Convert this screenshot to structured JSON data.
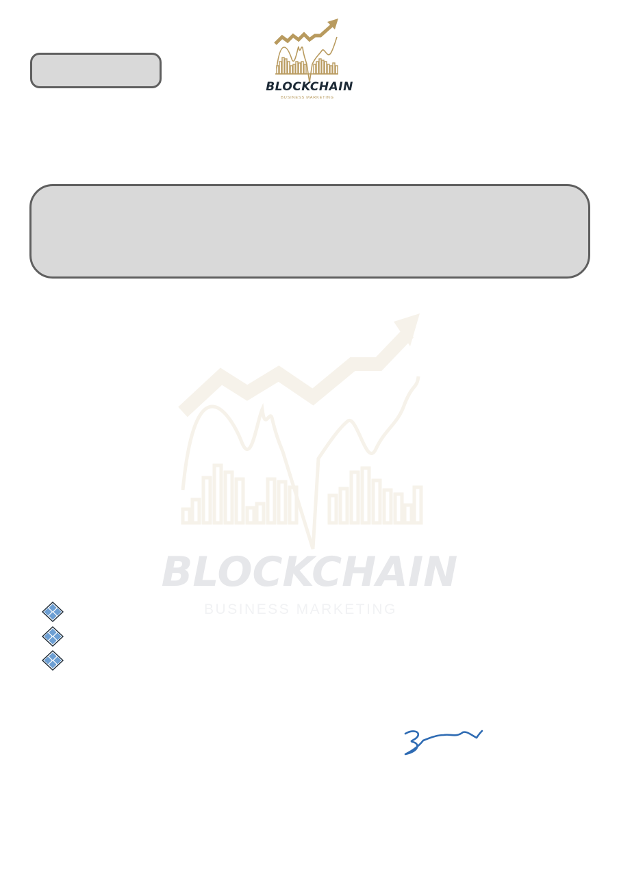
{
  "header": {
    "logo": {
      "title": "BLOCKCHAIN",
      "subtitle": "BUSINESS MARKETING",
      "color_gold": "#b89a5e",
      "color_dark": "#1d2a36"
    },
    "reference_box": {
      "text": ""
    }
  },
  "main_box": {
    "text": ""
  },
  "watermark": {
    "title": "BLOCKCHAIN",
    "subtitle": "BUSINESS MARKETING",
    "color_chart": "#f6f2ea",
    "color_text": "#e6e7ea"
  },
  "bullets": [
    {
      "icon": "diamond-bullet-icon",
      "text": ""
    },
    {
      "icon": "diamond-bullet-icon",
      "text": ""
    },
    {
      "icon": "diamond-bullet-icon",
      "text": ""
    }
  ],
  "signature": {
    "icon": "signature-scribble",
    "color": "#2e6bb3"
  }
}
